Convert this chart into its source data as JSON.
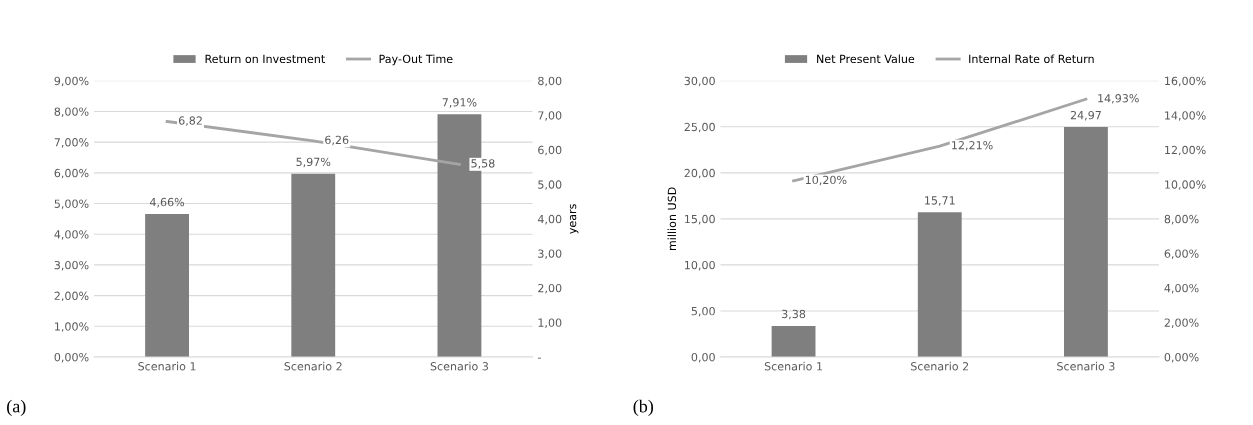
{
  "chart_data": [
    {
      "type": "bar",
      "categories": [
        "Scenario 1",
        "Scenario 2",
        "Scenario 3"
      ],
      "y2label": "years",
      "legend": "top",
      "grid": "y",
      "annotations": [
        "(a)"
      ],
      "ylim": [
        0,
        9
      ],
      "yticks": [
        {
          "value": 0,
          "label": "0,00%"
        },
        {
          "value": 1,
          "label": "1,00%"
        },
        {
          "value": 2,
          "label": "2,00%"
        },
        {
          "value": 3,
          "label": "3,00%"
        },
        {
          "value": 4,
          "label": "4,00%"
        },
        {
          "value": 5,
          "label": "5,00%"
        },
        {
          "value": 6,
          "label": "6,00%"
        },
        {
          "value": 7,
          "label": "7,00%"
        },
        {
          "value": 8,
          "label": "8,00%"
        },
        {
          "value": 9,
          "label": "9,00%"
        }
      ],
      "y2lim": [
        0,
        8
      ],
      "y2ticks": [
        {
          "value": 0,
          "label": "-"
        },
        {
          "value": 1,
          "label": "1,00"
        },
        {
          "value": 2,
          "label": "2,00"
        },
        {
          "value": 3,
          "label": "3,00"
        },
        {
          "value": 4,
          "label": "4,00"
        },
        {
          "value": 5,
          "label": "5,00"
        },
        {
          "value": 6,
          "label": "6,00"
        },
        {
          "value": 7,
          "label": "7,00"
        },
        {
          "value": 8,
          "label": "8,00"
        }
      ],
      "series": [
        {
          "name": "Return on Investment",
          "color": "#7f7f7f",
          "values": [
            4.66,
            5.97,
            7.91
          ],
          "value_labels": [
            "4,66%",
            "5,97%",
            "7,91%"
          ]
        },
        {
          "name": "Pay-Out Time",
          "type": "line",
          "axis": "y2",
          "color": "#a5a5a5",
          "values": [
            6.82,
            6.26,
            5.58
          ],
          "value_labels": [
            "6,82",
            "6,26",
            "5,58"
          ]
        }
      ]
    },
    {
      "type": "bar",
      "categories": [
        "Scenario 1",
        "Scenario 2",
        "Scenario 3"
      ],
      "ylabel": "million USD",
      "legend": "top",
      "grid": "y",
      "annotations": [
        "(b)"
      ],
      "ylim": [
        0,
        30
      ],
      "yticks": [
        {
          "value": 0,
          "label": "0,00"
        },
        {
          "value": 5,
          "label": "5,00"
        },
        {
          "value": 10,
          "label": "10,00"
        },
        {
          "value": 15,
          "label": "15,00"
        },
        {
          "value": 20,
          "label": "20,00"
        },
        {
          "value": 25,
          "label": "25,00"
        },
        {
          "value": 30,
          "label": "30,00"
        }
      ],
      "y2lim": [
        0,
        16
      ],
      "y2ticks": [
        {
          "value": 0,
          "label": "0,00%"
        },
        {
          "value": 2,
          "label": "2,00%"
        },
        {
          "value": 4,
          "label": "4,00%"
        },
        {
          "value": 6,
          "label": "6,00%"
        },
        {
          "value": 8,
          "label": "8,00%"
        },
        {
          "value": 10,
          "label": "10,00%"
        },
        {
          "value": 12,
          "label": "12,00%"
        },
        {
          "value": 14,
          "label": "14,00%"
        },
        {
          "value": 16,
          "label": "16,00%"
        }
      ],
      "series": [
        {
          "name": "Net Present Value",
          "color": "#7f7f7f",
          "values": [
            3.38,
            15.71,
            24.97
          ],
          "value_labels": [
            "3,38",
            "15,71",
            "24,97"
          ]
        },
        {
          "name": "Internal Rate of Return",
          "type": "line",
          "axis": "y2",
          "color": "#a5a5a5",
          "values": [
            10.2,
            12.21,
            14.93
          ],
          "value_labels": [
            "10,20%",
            "12,21%",
            "14,93%"
          ]
        }
      ]
    }
  ]
}
